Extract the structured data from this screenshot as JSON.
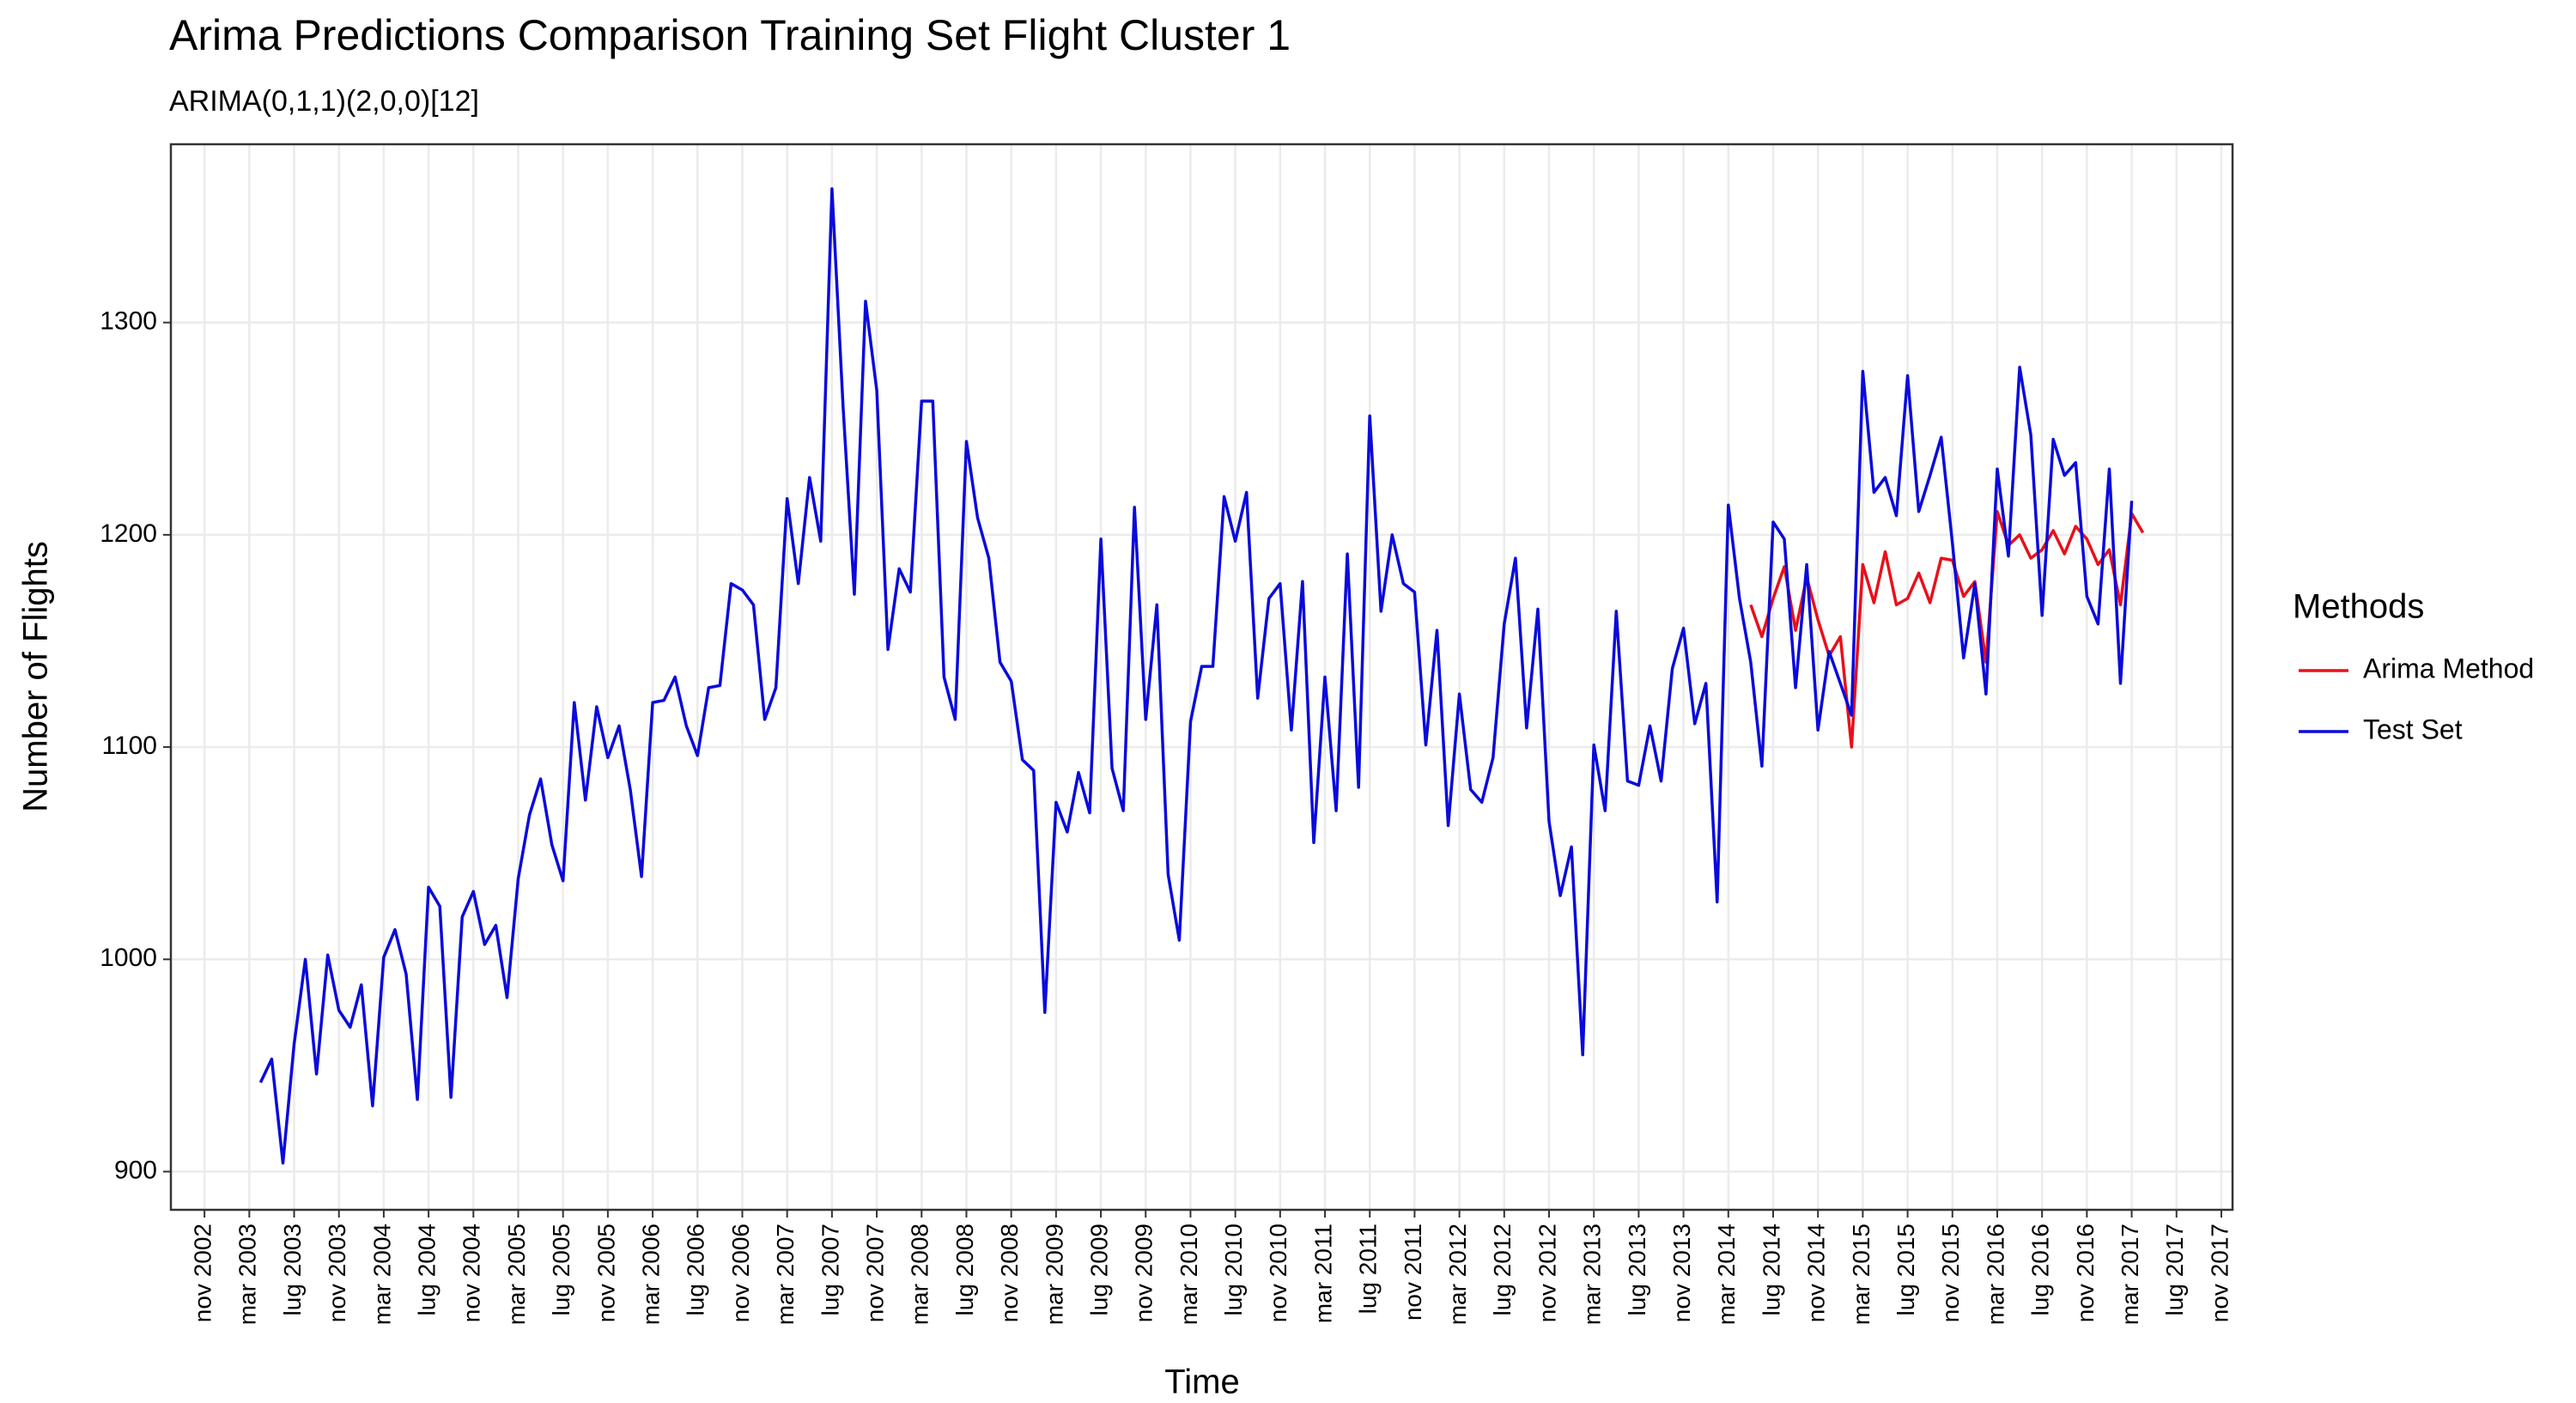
{
  "chart_data": {
    "type": "line",
    "title": "Arima Predictions Comparison Training Set Flight Cluster 1",
    "subtitle": "ARIMA(0,1,1)(2,0,0)[12]",
    "x_label": "Time",
    "y_label": "Number of Flights",
    "legend_title": "Methods",
    "legend": "right",
    "grid": true,
    "xlim": [
      "2002-08",
      "2017-12"
    ],
    "ylim": [
      882,
      1384
    ],
    "yticks": [
      900,
      1000,
      1100,
      1200,
      1300
    ],
    "xticks": [
      {
        "value": "2002-11",
        "label": "nov 2002"
      },
      {
        "value": "2003-03",
        "label": "mar 2003"
      },
      {
        "value": "2003-07",
        "label": "lug 2003"
      },
      {
        "value": "2003-11",
        "label": "nov 2003"
      },
      {
        "value": "2004-03",
        "label": "mar 2004"
      },
      {
        "value": "2004-07",
        "label": "lug 2004"
      },
      {
        "value": "2004-11",
        "label": "nov 2004"
      },
      {
        "value": "2005-03",
        "label": "mar 2005"
      },
      {
        "value": "2005-07",
        "label": "lug 2005"
      },
      {
        "value": "2005-11",
        "label": "nov 2005"
      },
      {
        "value": "2006-03",
        "label": "mar 2006"
      },
      {
        "value": "2006-07",
        "label": "lug 2006"
      },
      {
        "value": "2006-11",
        "label": "nov 2006"
      },
      {
        "value": "2007-03",
        "label": "mar 2007"
      },
      {
        "value": "2007-07",
        "label": "lug 2007"
      },
      {
        "value": "2007-11",
        "label": "nov 2007"
      },
      {
        "value": "2008-03",
        "label": "mar 2008"
      },
      {
        "value": "2008-07",
        "label": "lug 2008"
      },
      {
        "value": "2008-11",
        "label": "nov 2008"
      },
      {
        "value": "2009-03",
        "label": "mar 2009"
      },
      {
        "value": "2009-07",
        "label": "lug 2009"
      },
      {
        "value": "2009-11",
        "label": "nov 2009"
      },
      {
        "value": "2010-03",
        "label": "mar 2010"
      },
      {
        "value": "2010-07",
        "label": "lug 2010"
      },
      {
        "value": "2010-11",
        "label": "nov 2010"
      },
      {
        "value": "2011-03",
        "label": "mar 2011"
      },
      {
        "value": "2011-07",
        "label": "lug 2011"
      },
      {
        "value": "2011-11",
        "label": "nov 2011"
      },
      {
        "value": "2012-03",
        "label": "mar 2012"
      },
      {
        "value": "2012-07",
        "label": "lug 2012"
      },
      {
        "value": "2012-11",
        "label": "nov 2012"
      },
      {
        "value": "2013-03",
        "label": "mar 2013"
      },
      {
        "value": "2013-07",
        "label": "lug 2013"
      },
      {
        "value": "2013-11",
        "label": "nov 2013"
      },
      {
        "value": "2014-03",
        "label": "mar 2014"
      },
      {
        "value": "2014-07",
        "label": "lug 2014"
      },
      {
        "value": "2014-11",
        "label": "nov 2014"
      },
      {
        "value": "2015-03",
        "label": "mar 2015"
      },
      {
        "value": "2015-07",
        "label": "lug 2015"
      },
      {
        "value": "2015-11",
        "label": "nov 2015"
      },
      {
        "value": "2016-03",
        "label": "mar 2016"
      },
      {
        "value": "2016-07",
        "label": "lug 2016"
      },
      {
        "value": "2016-11",
        "label": "nov 2016"
      },
      {
        "value": "2017-03",
        "label": "mar 2017"
      },
      {
        "value": "2017-07",
        "label": "lug 2017"
      },
      {
        "value": "2017-11",
        "label": "nov 2017"
      }
    ],
    "series": [
      {
        "name": "Arima Method",
        "color": "#e8101a",
        "x": [
          "2014-05",
          "2014-06",
          "2014-07",
          "2014-08",
          "2014-09",
          "2014-10",
          "2014-11",
          "2014-12",
          "2015-01",
          "2015-02",
          "2015-03",
          "2015-04",
          "2015-05",
          "2015-06",
          "2015-07",
          "2015-08",
          "2015-09",
          "2015-10",
          "2015-11",
          "2015-12",
          "2016-01",
          "2016-02",
          "2016-03",
          "2016-04",
          "2016-05",
          "2016-06",
          "2016-07",
          "2016-08",
          "2016-09",
          "2016-10",
          "2016-11",
          "2016-12",
          "2017-01",
          "2017-02",
          "2017-03",
          "2017-04"
        ],
        "values": [
          1167,
          1152,
          1170,
          1185,
          1155,
          1180,
          1160,
          1143,
          1152,
          1100,
          1186,
          1168,
          1192,
          1167,
          1170,
          1182,
          1168,
          1189,
          1188,
          1171,
          1178,
          1140,
          1211,
          1195,
          1200,
          1189,
          1193,
          1202,
          1191,
          1204,
          1198,
          1186,
          1193,
          1167,
          1210,
          1201
        ]
      },
      {
        "name": "Test Set",
        "color": "#0a0adc",
        "x": [
          "2003-04",
          "2003-05",
          "2003-06",
          "2003-07",
          "2003-08",
          "2003-09",
          "2003-10",
          "2003-11",
          "2003-12",
          "2004-01",
          "2004-02",
          "2004-03",
          "2004-04",
          "2004-05",
          "2004-06",
          "2004-07",
          "2004-08",
          "2004-09",
          "2004-10",
          "2004-11",
          "2004-12",
          "2005-01",
          "2005-02",
          "2005-03",
          "2005-04",
          "2005-05",
          "2005-06",
          "2005-07",
          "2005-08",
          "2005-09",
          "2005-10",
          "2005-11",
          "2005-12",
          "2006-01",
          "2006-02",
          "2006-03",
          "2006-04",
          "2006-05",
          "2006-06",
          "2006-07",
          "2006-08",
          "2006-09",
          "2006-10",
          "2006-11",
          "2006-12",
          "2007-01",
          "2007-02",
          "2007-03",
          "2007-04",
          "2007-05",
          "2007-06",
          "2007-07",
          "2007-08",
          "2007-09",
          "2007-10",
          "2007-11",
          "2007-12",
          "2008-01",
          "2008-02",
          "2008-03",
          "2008-04",
          "2008-05",
          "2008-06",
          "2008-07",
          "2008-08",
          "2008-09",
          "2008-10",
          "2008-11",
          "2008-12",
          "2009-01",
          "2009-02",
          "2009-03",
          "2009-04",
          "2009-05",
          "2009-06",
          "2009-07",
          "2009-08",
          "2009-09",
          "2009-10",
          "2009-11",
          "2009-12",
          "2010-01",
          "2010-02",
          "2010-03",
          "2010-04",
          "2010-05",
          "2010-06",
          "2010-07",
          "2010-08",
          "2010-09",
          "2010-10",
          "2010-11",
          "2010-12",
          "2011-01",
          "2011-02",
          "2011-03",
          "2011-04",
          "2011-05",
          "2011-06",
          "2011-07",
          "2011-08",
          "2011-09",
          "2011-10",
          "2011-11",
          "2011-12",
          "2012-01",
          "2012-02",
          "2012-03",
          "2012-04",
          "2012-05",
          "2012-06",
          "2012-07",
          "2012-08",
          "2012-09",
          "2012-10",
          "2012-11",
          "2012-12",
          "2013-01",
          "2013-02",
          "2013-03",
          "2013-04",
          "2013-05",
          "2013-06",
          "2013-07",
          "2013-08",
          "2013-09",
          "2013-10",
          "2013-11",
          "2013-12",
          "2014-01",
          "2014-02",
          "2014-03",
          "2014-04",
          "2014-05",
          "2014-06",
          "2014-07",
          "2014-08",
          "2014-09",
          "2014-10",
          "2014-11",
          "2014-12",
          "2015-01",
          "2015-02",
          "2015-03",
          "2015-04",
          "2015-05",
          "2015-06",
          "2015-07",
          "2015-08",
          "2015-09",
          "2015-10",
          "2015-11",
          "2015-12",
          "2016-01",
          "2016-02",
          "2016-03",
          "2016-04",
          "2016-05",
          "2016-06",
          "2016-07",
          "2016-08",
          "2016-09",
          "2016-10",
          "2016-11",
          "2016-12",
          "2017-01",
          "2017-02",
          "2017-03"
        ],
        "values": [
          942,
          953,
          904,
          960,
          1000,
          946,
          1002,
          976,
          968,
          988,
          931,
          1001,
          1014,
          993,
          934,
          1034,
          1025,
          935,
          1020,
          1032,
          1007,
          1016,
          982,
          1038,
          1068,
          1085,
          1054,
          1037,
          1121,
          1075,
          1119,
          1095,
          1110,
          1080,
          1039,
          1121,
          1122,
          1133,
          1110,
          1096,
          1128,
          1129,
          1177,
          1174,
          1167,
          1113,
          1128,
          1217,
          1177,
          1227,
          1197,
          1363,
          1260,
          1172,
          1310,
          1268,
          1146,
          1184,
          1173,
          1263,
          1263,
          1133,
          1113,
          1244,
          1208,
          1189,
          1140,
          1131,
          1094,
          1089,
          975,
          1074,
          1060,
          1088,
          1069,
          1198,
          1090,
          1070,
          1213,
          1113,
          1167,
          1040,
          1009,
          1112,
          1138,
          1138,
          1218,
          1197,
          1220,
          1123,
          1170,
          1177,
          1108,
          1178,
          1055,
          1133,
          1070,
          1191,
          1081,
          1256,
          1164,
          1200,
          1177,
          1173,
          1101,
          1155,
          1063,
          1125,
          1080,
          1074,
          1095,
          1158,
          1189,
          1109,
          1165,
          1065,
          1030,
          1053,
          955,
          1101,
          1070,
          1164,
          1084,
          1082,
          1110,
          1084,
          1137,
          1156,
          1111,
          1130,
          1027,
          1214,
          1170,
          1140,
          1091,
          1206,
          1198,
          1128,
          1186,
          1108,
          1145,
          1130,
          1115,
          1277,
          1220,
          1227,
          1209,
          1275,
          1211,
          1228,
          1246,
          1196,
          1142,
          1177,
          1125,
          1231,
          1190,
          1279,
          1247,
          1162,
          1245,
          1228,
          1234,
          1171,
          1158,
          1231,
          1130,
          1216
        ]
      }
    ]
  }
}
